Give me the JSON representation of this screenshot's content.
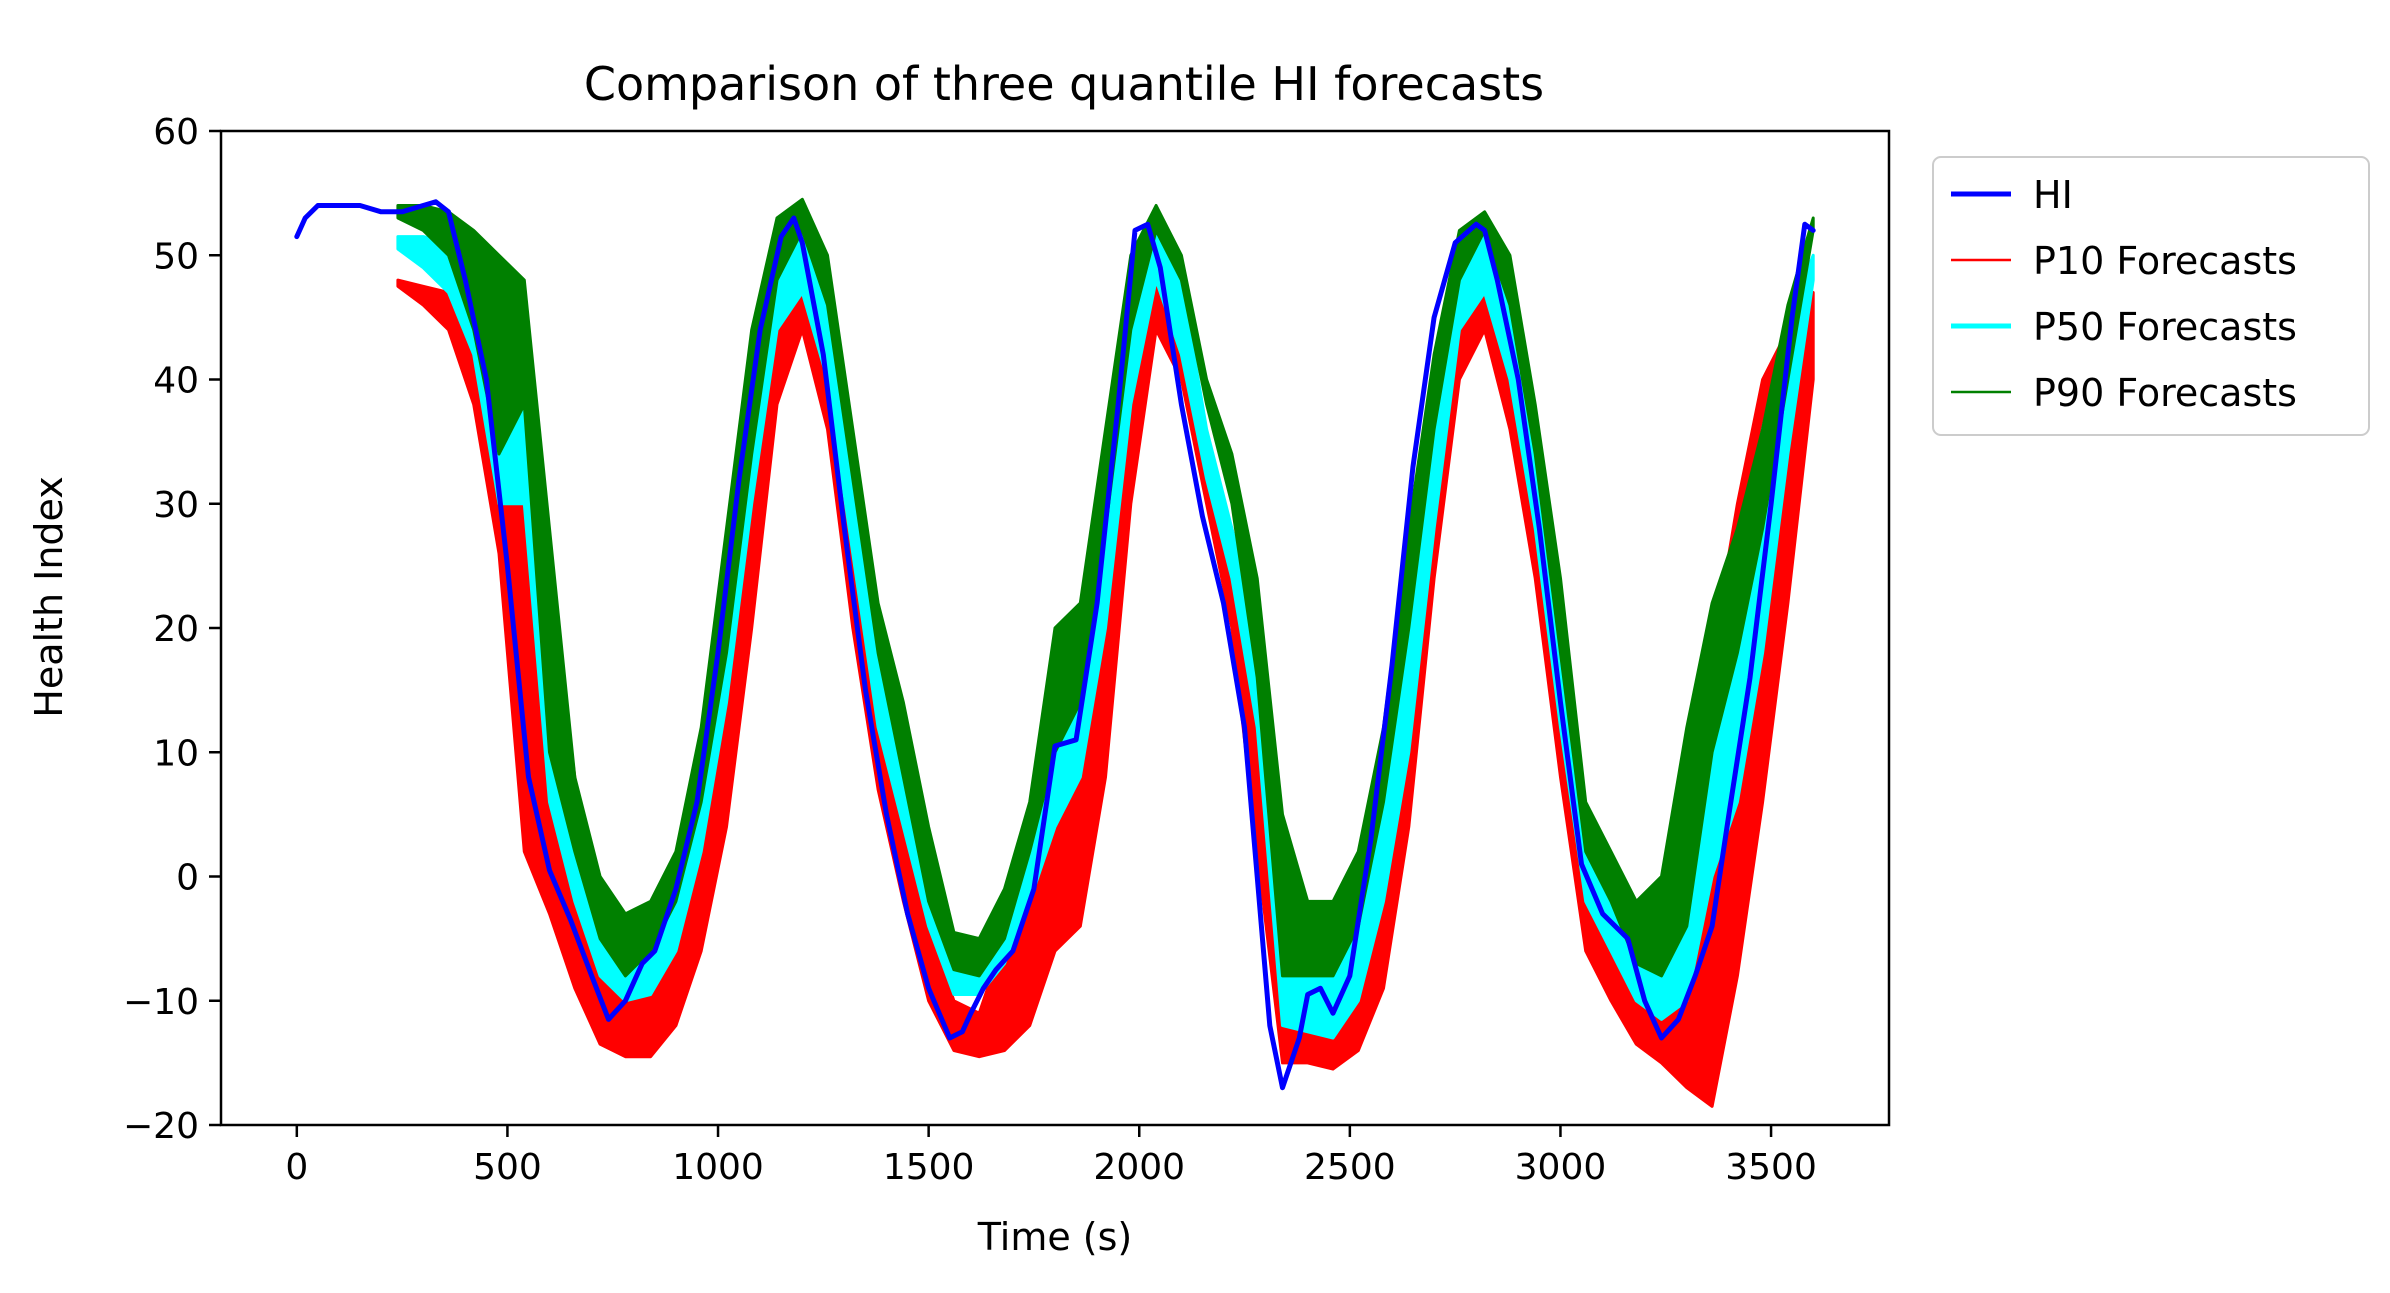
{
  "chart_data": {
    "type": "line",
    "title": "Comparison of three quantile HI forecasts",
    "xlabel": "Time (s)",
    "ylabel": "Health Index",
    "xlim": [
      -180,
      3780
    ],
    "ylim": [
      -20,
      60
    ],
    "xticks": [
      0,
      500,
      1000,
      1500,
      2000,
      2500,
      3000,
      3500
    ],
    "yticks": [
      -20,
      -10,
      0,
      10,
      20,
      30,
      40,
      50,
      60
    ],
    "xtick_labels": [
      "0",
      "500",
      "1000",
      "1500",
      "2000",
      "2500",
      "3000",
      "3500"
    ],
    "ytick_labels": [
      "−20",
      "−10",
      "0",
      "10",
      "20",
      "30",
      "40",
      "50",
      "60"
    ],
    "grid": false,
    "legend_position": "outside-upper-right",
    "series": [
      {
        "name": "HI",
        "color": "#0000ff",
        "style": "line",
        "x": [
          0,
          20,
          50,
          100,
          150,
          200,
          250,
          300,
          330,
          360,
          400,
          450,
          500,
          550,
          600,
          650,
          700,
          740,
          780,
          820,
          850,
          900,
          950,
          1000,
          1050,
          1100,
          1150,
          1180,
          1200,
          1250,
          1300,
          1350,
          1400,
          1450,
          1500,
          1550,
          1580,
          1600,
          1630,
          1660,
          1700,
          1750,
          1800,
          1850,
          1900,
          1950,
          1990,
          2020,
          2050,
          2100,
          2150,
          2200,
          2250,
          2280,
          2310,
          2340,
          2380,
          2400,
          2430,
          2460,
          2500,
          2550,
          2600,
          2650,
          2700,
          2750,
          2800,
          2820,
          2850,
          2900,
          2950,
          3000,
          3050,
          3100,
          3130,
          3160,
          3200,
          3240,
          3280,
          3320,
          3360,
          3400,
          3450,
          3500,
          3550,
          3580,
          3600
        ],
        "values": [
          51.5,
          53.0,
          54.0,
          54.0,
          54.0,
          53.5,
          53.5,
          54.0,
          54.3,
          53.5,
          48.0,
          40.0,
          25.0,
          8.0,
          0.5,
          -3.5,
          -8.0,
          -11.5,
          -10.0,
          -7.0,
          -6.0,
          -1.0,
          6.0,
          18.0,
          32.0,
          44.0,
          51.5,
          53.0,
          51.0,
          42.0,
          28.0,
          15.0,
          5.0,
          -3.0,
          -9.0,
          -13.0,
          -12.5,
          -11.0,
          -9.0,
          -7.5,
          -6.0,
          -1.0,
          10.5,
          11.0,
          22.0,
          38.0,
          52.0,
          52.5,
          49.0,
          38.0,
          29.0,
          22.0,
          12.0,
          0.0,
          -12.0,
          -17.0,
          -13.0,
          -9.5,
          -9.0,
          -11.0,
          -8.0,
          3.0,
          17.0,
          33.0,
          45.0,
          51.0,
          52.5,
          52.0,
          48.0,
          40.0,
          28.0,
          14.0,
          1.0,
          -3.0,
          -4.0,
          -5.0,
          -10.0,
          -13.0,
          -11.5,
          -8.0,
          -4.0,
          5.0,
          16.0,
          30.0,
          45.0,
          52.5,
          52.0
        ]
      },
      {
        "name": "P10 Forecasts",
        "color": "#ff0000",
        "style": "band",
        "x": [
          240,
          300,
          360,
          420,
          480,
          540,
          600,
          660,
          720,
          780,
          840,
          900,
          960,
          1020,
          1080,
          1140,
          1200,
          1260,
          1320,
          1380,
          1440,
          1500,
          1560,
          1620,
          1680,
          1740,
          1800,
          1860,
          1920,
          1980,
          2040,
          2100,
          2160,
          2220,
          2280,
          2340,
          2400,
          2460,
          2520,
          2580,
          2640,
          2700,
          2760,
          2820,
          2880,
          2940,
          3000,
          3060,
          3120,
          3180,
          3240,
          3300,
          3360,
          3420,
          3480,
          3540,
          3600
        ],
        "lower": [
          47.5,
          46.0,
          44.0,
          38.0,
          26.0,
          2.0,
          -3.0,
          -9.0,
          -13.5,
          -14.5,
          -14.5,
          -12.0,
          -6.0,
          4.0,
          20.0,
          38.0,
          44.0,
          36.0,
          20.0,
          7.0,
          -2.0,
          -10.0,
          -14.0,
          -14.5,
          -14.0,
          -12.0,
          -6.0,
          -4.0,
          8.0,
          30.0,
          44.0,
          40.0,
          30.0,
          20.0,
          2.0,
          -15.0,
          -15.0,
          -15.5,
          -14.0,
          -9.0,
          4.0,
          24.0,
          40.0,
          44.0,
          36.0,
          24.0,
          8.0,
          -6.0,
          -10.0,
          -13.5,
          -15.0,
          -17.0,
          -18.5,
          -8.0,
          6.0,
          22.0,
          40.0
        ],
        "upper": [
          48.0,
          47.5,
          47.0,
          45.0,
          40.0,
          36.0,
          24.0,
          8.0,
          -6.0,
          -7.0,
          -6.0,
          -2.0,
          8.0,
          24.0,
          38.0,
          47.0,
          50.5,
          45.0,
          28.0,
          14.0,
          6.0,
          -4.0,
          -10.0,
          -11.0,
          -5.0,
          2.0,
          10.0,
          12.0,
          28.0,
          44.0,
          50.0,
          46.0,
          34.0,
          28.0,
          18.0,
          -6.0,
          -8.0,
          -10.0,
          -5.0,
          4.0,
          18.0,
          34.0,
          46.0,
          49.0,
          44.0,
          32.0,
          18.0,
          2.0,
          -3.0,
          -9.0,
          -8.0,
          2.0,
          18.0,
          30.0,
          40.0,
          44.0,
          47.0
        ]
      },
      {
        "name": "P50 Forecasts",
        "color": "#00ffff",
        "style": "band",
        "x": [
          240,
          300,
          360,
          420,
          480,
          540,
          600,
          660,
          720,
          780,
          840,
          900,
          960,
          1020,
          1080,
          1140,
          1200,
          1260,
          1320,
          1380,
          1440,
          1500,
          1560,
          1620,
          1680,
          1740,
          1800,
          1860,
          1920,
          1980,
          2040,
          2100,
          2160,
          2220,
          2280,
          2340,
          2400,
          2460,
          2520,
          2580,
          2640,
          2700,
          2760,
          2820,
          2880,
          2940,
          3000,
          3060,
          3120,
          3180,
          3240,
          3300,
          3360,
          3420,
          3480,
          3540,
          3600
        ],
        "lower": [
          50.5,
          49.0,
          47.0,
          42.0,
          30.0,
          30.0,
          6.0,
          -2.0,
          -8.0,
          -10.0,
          -9.5,
          -6.0,
          2.0,
          14.0,
          30.0,
          44.0,
          47.0,
          40.0,
          26.0,
          12.0,
          4.0,
          -4.0,
          -9.5,
          -9.5,
          -7.0,
          -2.0,
          4.0,
          8.0,
          20.0,
          38.0,
          48.0,
          42.0,
          32.0,
          24.0,
          12.0,
          -12.0,
          -12.5,
          -13.0,
          -10.0,
          -2.0,
          10.0,
          28.0,
          44.0,
          47.0,
          40.0,
          28.0,
          12.0,
          -2.0,
          -6.0,
          -10.0,
          -11.5,
          -10.0,
          0.0,
          6.0,
          18.0,
          34.0,
          48.0
        ],
        "upper": [
          51.5,
          51.5,
          51.0,
          48.5,
          45.0,
          42.0,
          20.0,
          5.0,
          -4.0,
          -5.0,
          -4.0,
          0.0,
          9.0,
          24.0,
          40.0,
          50.0,
          52.5,
          47.0,
          32.0,
          18.0,
          9.0,
          0.0,
          -7.0,
          -8.0,
          -4.0,
          3.0,
          14.0,
          16.0,
          32.0,
          48.0,
          52.5,
          48.0,
          36.0,
          28.0,
          20.0,
          -2.0,
          -5.0,
          -6.0,
          -2.0,
          8.0,
          22.0,
          38.0,
          50.0,
          52.0,
          47.0,
          34.0,
          20.0,
          3.0,
          -2.0,
          -6.0,
          -5.0,
          4.0,
          14.0,
          26.0,
          36.0,
          45.0,
          50.0
        ]
      },
      {
        "name": "P90 Forecasts",
        "color": "#008000",
        "style": "band",
        "x": [
          240,
          300,
          360,
          420,
          480,
          540,
          600,
          660,
          720,
          780,
          840,
          900,
          960,
          1020,
          1080,
          1140,
          1200,
          1260,
          1320,
          1380,
          1440,
          1500,
          1560,
          1620,
          1680,
          1740,
          1800,
          1860,
          1920,
          1980,
          2040,
          2100,
          2160,
          2220,
          2280,
          2340,
          2400,
          2460,
          2520,
          2580,
          2640,
          2700,
          2760,
          2820,
          2880,
          2940,
          3000,
          3060,
          3120,
          3180,
          3240,
          3300,
          3360,
          3420,
          3480,
          3540,
          3600
        ],
        "lower": [
          53.0,
          52.0,
          50.0,
          44.0,
          34.0,
          38.0,
          10.0,
          2.0,
          -5.0,
          -8.0,
          -6.0,
          -2.0,
          6.0,
          18.0,
          34.0,
          48.0,
          52.0,
          46.0,
          32.0,
          18.0,
          8.0,
          -2.0,
          -7.5,
          -8.0,
          -5.0,
          2.0,
          10.0,
          14.0,
          28.0,
          44.0,
          52.0,
          48.0,
          38.0,
          30.0,
          16.0,
          -8.0,
          -8.0,
          -8.0,
          -4.0,
          6.0,
          20.0,
          36.0,
          48.0,
          52.0,
          46.0,
          34.0,
          18.0,
          2.0,
          -2.0,
          -7.0,
          -8.0,
          -4.0,
          10.0,
          18.0,
          28.0,
          40.0,
          52.0
        ],
        "upper": [
          54.0,
          54.0,
          53.5,
          52.0,
          50.0,
          48.0,
          28.0,
          8.0,
          0.0,
          -3.0,
          -2.0,
          2.0,
          12.0,
          28.0,
          44.0,
          53.0,
          54.5,
          50.0,
          36.0,
          22.0,
          14.0,
          4.0,
          -4.5,
          -5.0,
          -1.0,
          6.0,
          20.0,
          22.0,
          36.0,
          50.0,
          54.0,
          50.0,
          40.0,
          34.0,
          24.0,
          5.0,
          -2.0,
          -2.0,
          2.0,
          12.0,
          28.0,
          42.0,
          52.0,
          53.5,
          50.0,
          38.0,
          24.0,
          6.0,
          2.0,
          -2.0,
          0.0,
          12.0,
          22.0,
          28.0,
          36.0,
          46.0,
          53.0
        ]
      }
    ],
    "legend": [
      {
        "name": "HI",
        "color": "#0000ff",
        "width": 5
      },
      {
        "name": "P10 Forecasts",
        "color": "#ff0000",
        "width": 2.5
      },
      {
        "name": "P50 Forecasts",
        "color": "#00ffff",
        "width": 5
      },
      {
        "name": "P90 Forecasts",
        "color": "#008000",
        "width": 2.5
      }
    ]
  }
}
